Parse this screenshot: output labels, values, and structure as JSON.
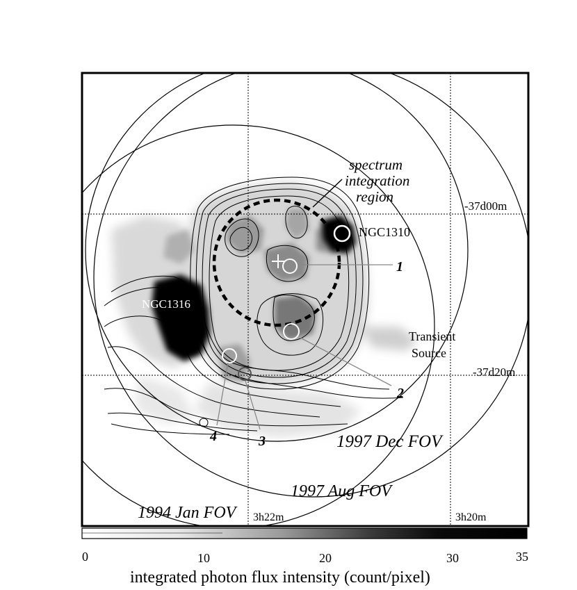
{
  "labels": {
    "region_line1": "spectrum",
    "region_line2": "integration",
    "region_line3": "region",
    "dec_top": "-37d00m",
    "dec_mid": "-37d20m",
    "ngc1310": "NGC1310",
    "ngc1316": "NGC1316",
    "transient_line1": "Transient",
    "transient_line2": "Source",
    "src1": "1",
    "src2": "2",
    "src3": "3",
    "src4": "4",
    "fov_1997dec": "1997 Dec FOV",
    "fov_1997aug": "1997 Aug FOV",
    "fov_1994jan": "1994 Jan FOV",
    "ra_left": "3h22m",
    "ra_right": "3h20m"
  },
  "colorbar": {
    "ticks": [
      "0",
      "10",
      "20",
      "30",
      "35"
    ],
    "title": "integrated photon flux intensity (count/pixel)"
  }
}
